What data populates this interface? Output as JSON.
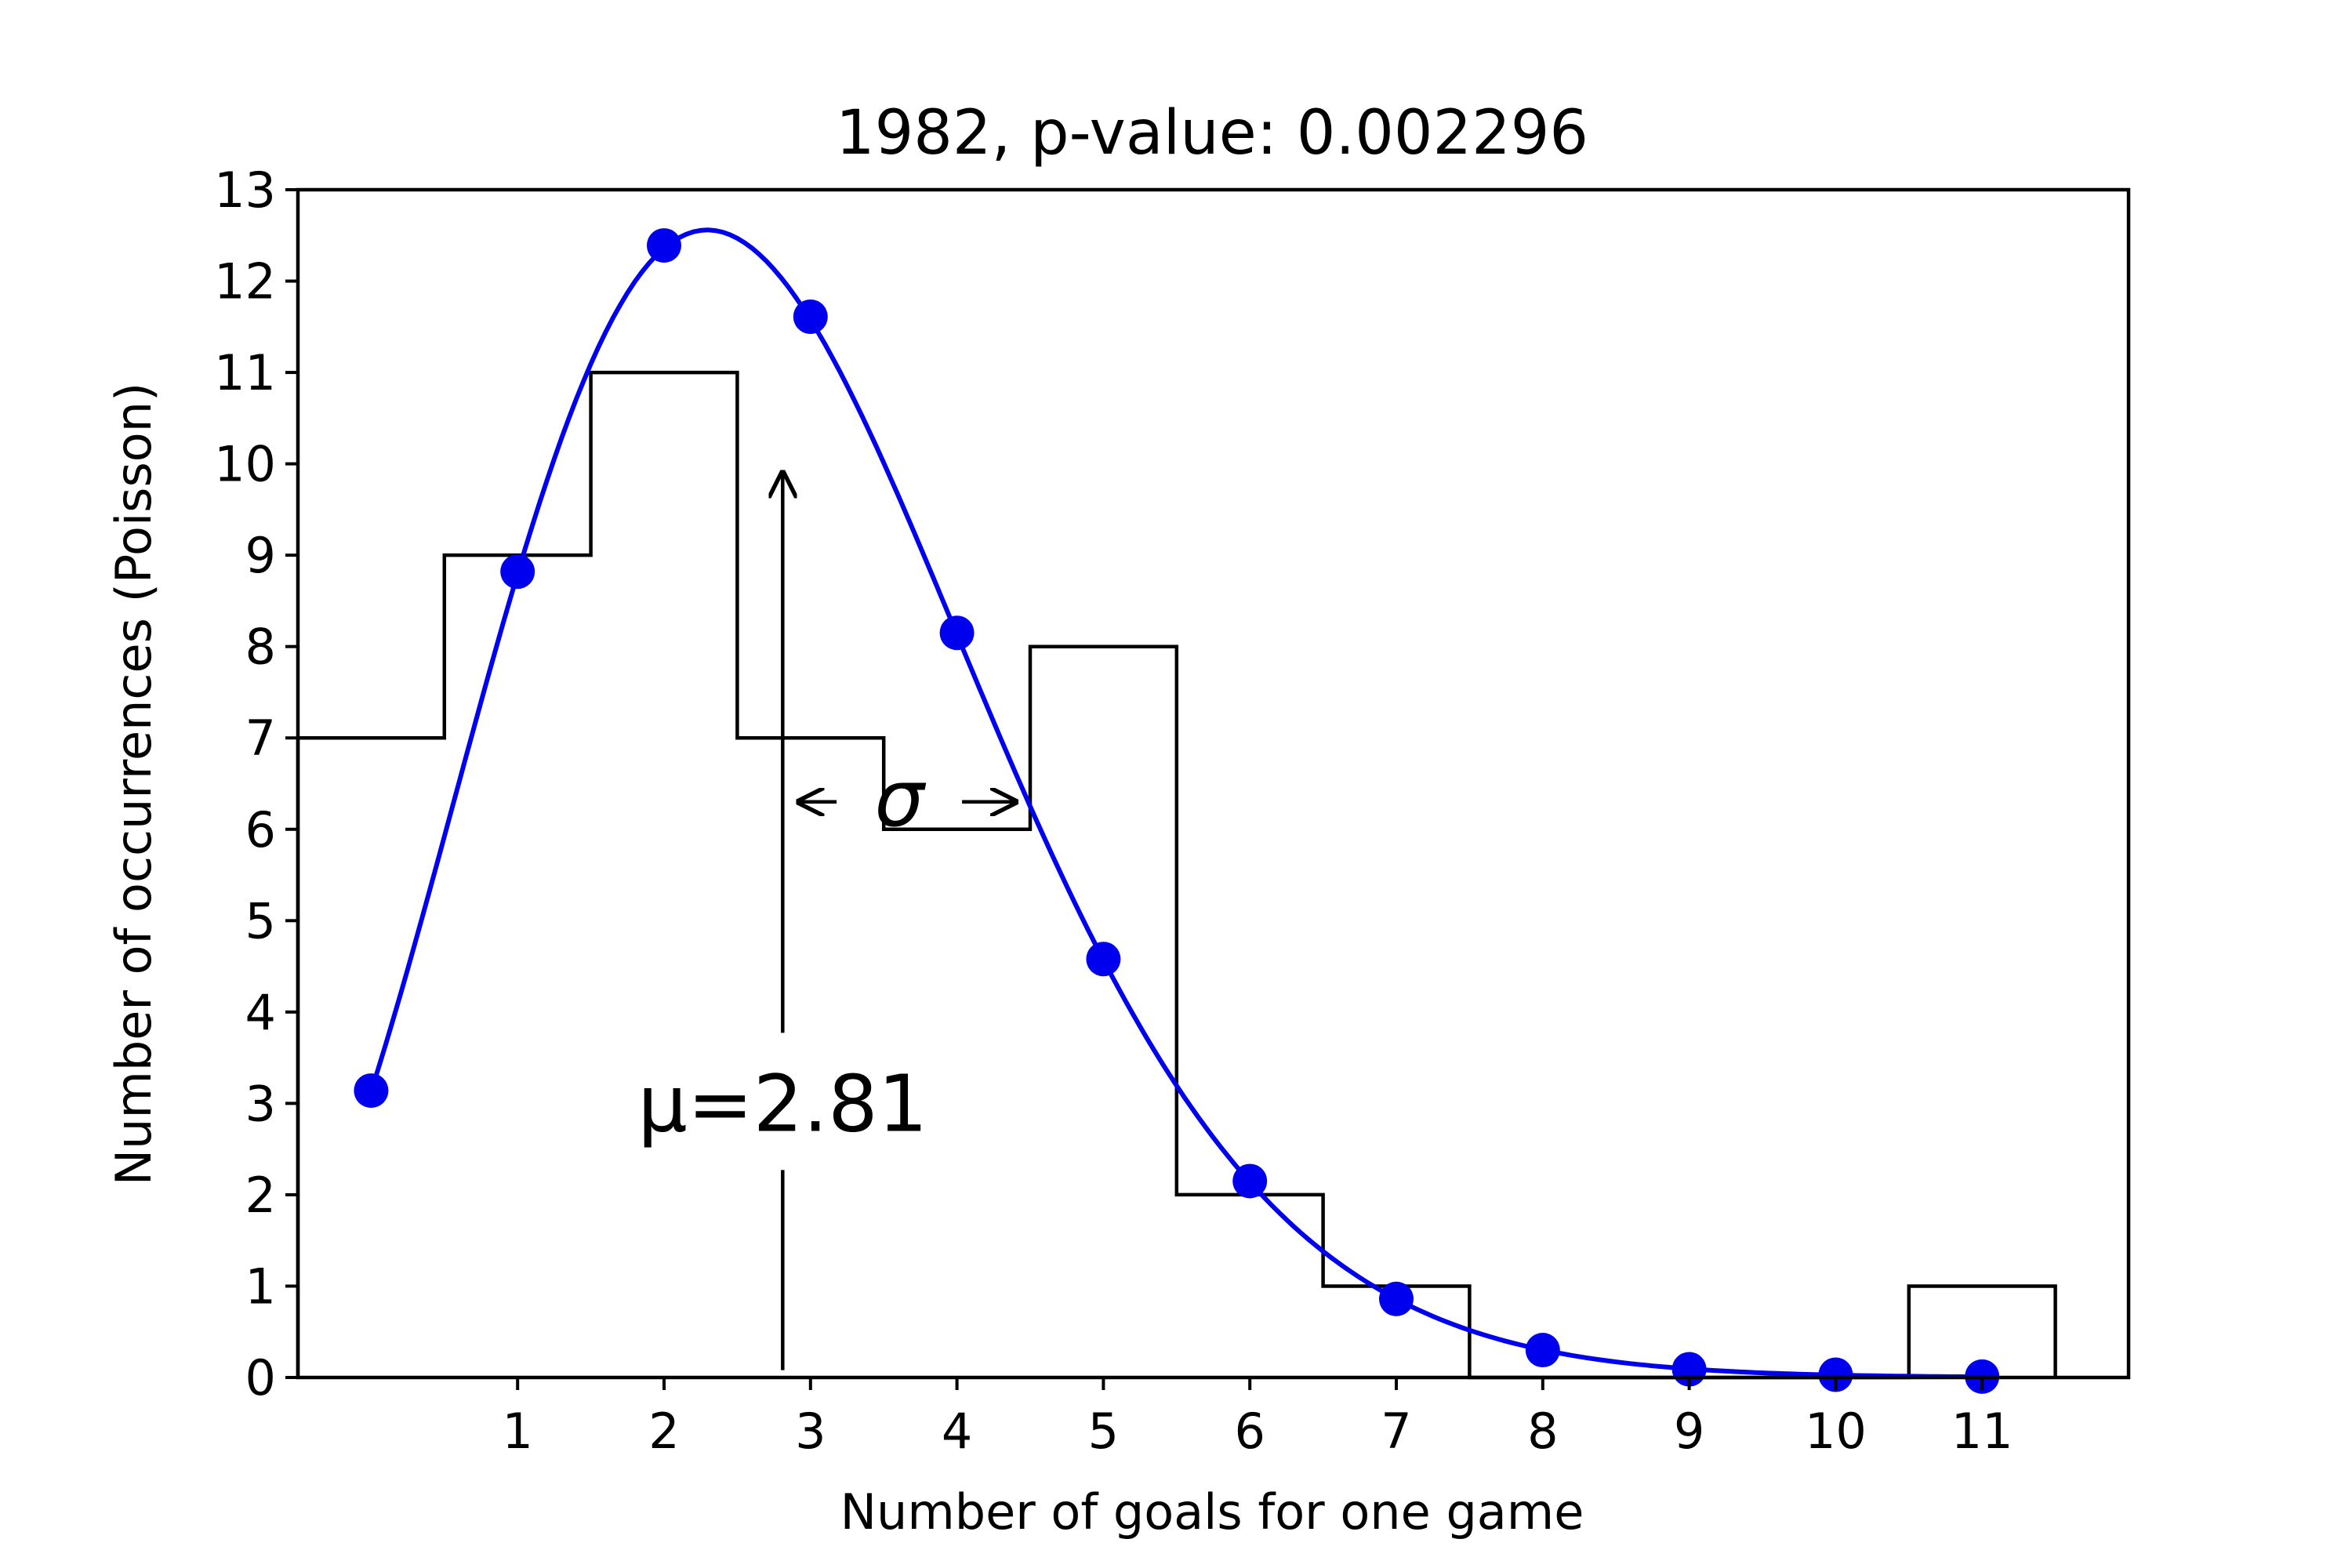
{
  "chart_data": {
    "type": "bar",
    "title": "1982, p-value: 0.002296",
    "xlabel": "Number of goals for one game",
    "ylabel": "Number of occurrences (Poisson)",
    "xlim": [
      -0.5,
      12
    ],
    "ylim": [
      0,
      13
    ],
    "grid": false,
    "x_ticks": [
      1,
      2,
      3,
      4,
      5,
      6,
      7,
      8,
      9,
      10,
      11
    ],
    "y_ticks": [
      0,
      1,
      2,
      3,
      4,
      5,
      6,
      7,
      8,
      9,
      10,
      11,
      12,
      13
    ],
    "histogram": {
      "style": "step",
      "color": "#000000",
      "bins": [
        {
          "x_start": -0.5,
          "x_end": 0.5,
          "count": 7
        },
        {
          "x_start": 0.5,
          "x_end": 1.5,
          "count": 9
        },
        {
          "x_start": 1.5,
          "x_end": 2.5,
          "count": 11
        },
        {
          "x_start": 2.5,
          "x_end": 3.5,
          "count": 7
        },
        {
          "x_start": 3.5,
          "x_end": 4.5,
          "count": 6
        },
        {
          "x_start": 4.5,
          "x_end": 5.5,
          "count": 8
        },
        {
          "x_start": 5.5,
          "x_end": 6.5,
          "count": 2
        },
        {
          "x_start": 6.5,
          "x_end": 7.5,
          "count": 1
        },
        {
          "x_start": 7.5,
          "x_end": 8.5,
          "count": 0
        },
        {
          "x_start": 8.5,
          "x_end": 9.5,
          "count": 0
        },
        {
          "x_start": 9.5,
          "x_end": 10.5,
          "count": 0
        },
        {
          "x_start": 10.5,
          "x_end": 11.5,
          "count": 1
        }
      ]
    },
    "poisson_points": {
      "color": "#0000ee",
      "x": [
        0,
        1,
        2,
        3,
        4,
        5,
        6,
        7,
        8,
        9,
        10,
        11
      ],
      "y": [
        3.14,
        8.82,
        12.39,
        11.61,
        8.15,
        4.58,
        2.15,
        0.86,
        0.3,
        0.09,
        0.03,
        0.01
      ]
    },
    "poisson_curve": {
      "color": "#0000ee",
      "lambda": 2.81,
      "total": 52
    },
    "annotations": {
      "mean_label": "μ=2.81",
      "mean_value": 2.81,
      "mean_arrow_top": 9.9,
      "sigma_label": "σ",
      "sigma_y": 6.3,
      "sigma_x_start": 2.92,
      "sigma_x_end": 4.4
    }
  }
}
